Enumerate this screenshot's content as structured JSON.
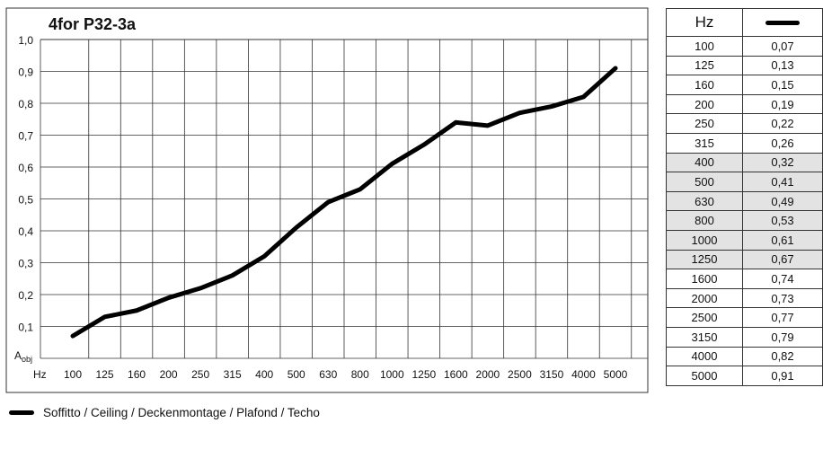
{
  "chart_data": {
    "type": "line",
    "title": "4for P32-3a",
    "ylabel": "A",
    "ylabel_sub": "obj",
    "xlabel": "Hz",
    "ylim": [
      0,
      1.0
    ],
    "yticks": [
      "1,0",
      "0,9",
      "0,8",
      "0,7",
      "0,6",
      "0,5",
      "0,4",
      "0,3",
      "0,2",
      "0,1"
    ],
    "categories": [
      "100",
      "125",
      "160",
      "200",
      "250",
      "315",
      "400",
      "500",
      "630",
      "800",
      "1000",
      "1250",
      "1600",
      "2000",
      "2500",
      "3150",
      "4000",
      "5000"
    ],
    "series": [
      {
        "values": [
          0.07,
          0.13,
          0.15,
          0.19,
          0.22,
          0.26,
          0.32,
          0.41,
          0.49,
          0.53,
          0.61,
          0.67,
          0.74,
          0.73,
          0.77,
          0.79,
          0.82,
          0.91
        ]
      }
    ],
    "line_color": "#000000",
    "grid": true
  },
  "table": {
    "header_hz": "Hz",
    "rows": [
      [
        "100",
        "0,07"
      ],
      [
        "125",
        "0,13"
      ],
      [
        "160",
        "0,15"
      ],
      [
        "200",
        "0,19"
      ],
      [
        "250",
        "0,22"
      ],
      [
        "315",
        "0,26"
      ],
      [
        "400",
        "0,32"
      ],
      [
        "500",
        "0,41"
      ],
      [
        "630",
        "0,49"
      ],
      [
        "800",
        "0,53"
      ],
      [
        "1000",
        "0,61"
      ],
      [
        "1250",
        "0,67"
      ],
      [
        "1600",
        "0,74"
      ],
      [
        "2000",
        "0,73"
      ],
      [
        "2500",
        "0,77"
      ],
      [
        "3150",
        "0,79"
      ],
      [
        "4000",
        "0,82"
      ],
      [
        "5000",
        "0,91"
      ]
    ],
    "highlight_color": "#e3e3e3"
  },
  "legend": {
    "label": "Soffitto / Ceiling / Deckenmontage / Plafond / Techo"
  }
}
